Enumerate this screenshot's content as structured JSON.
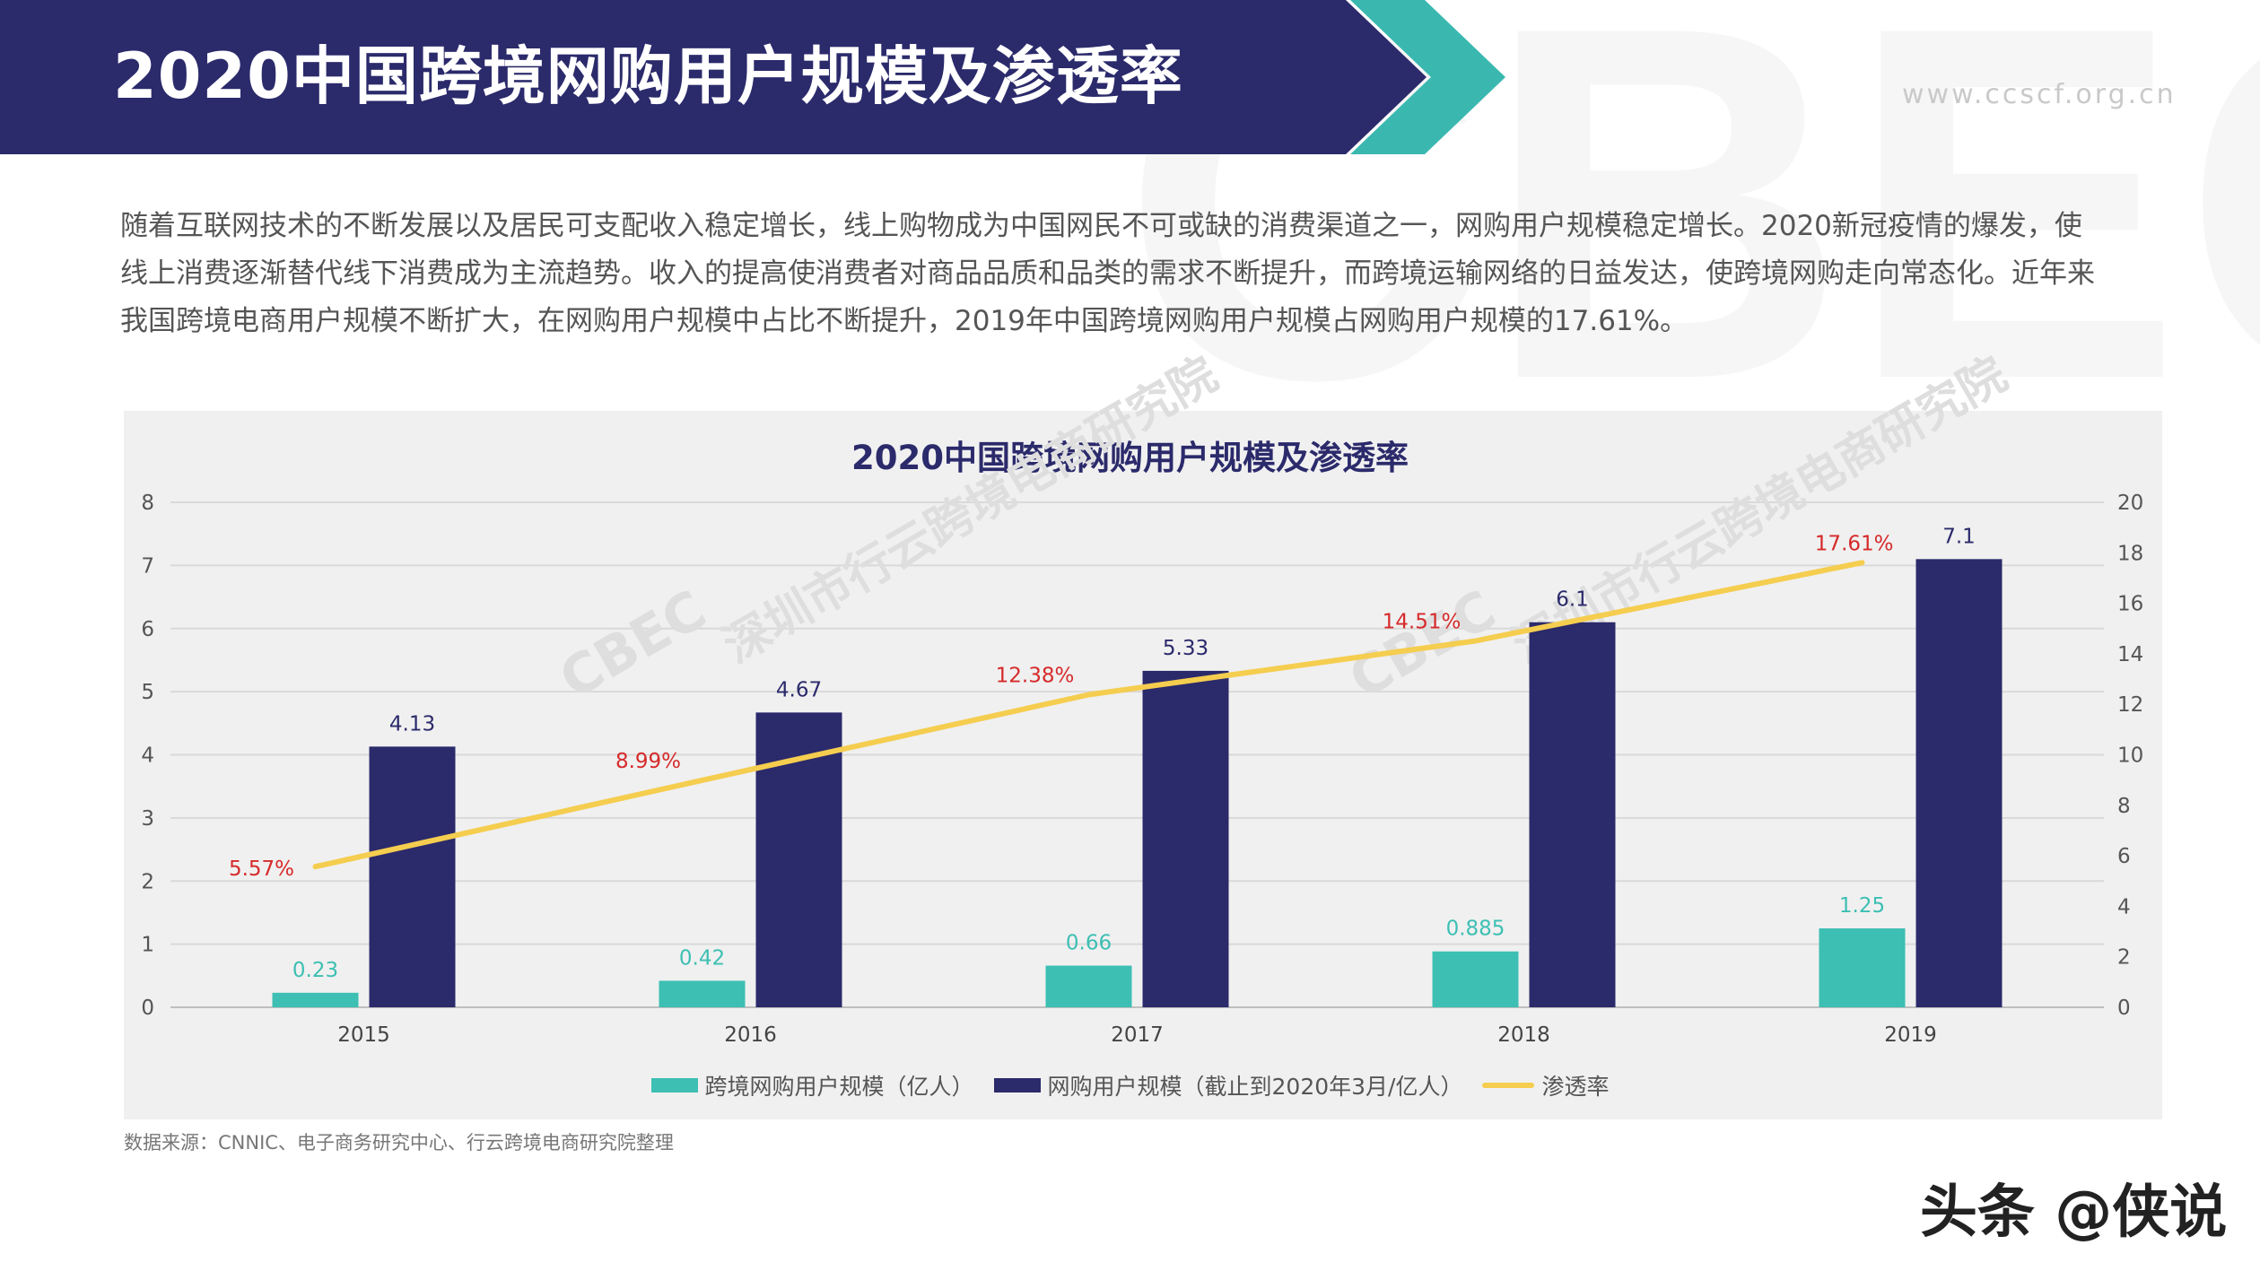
{
  "header": {
    "title": "2020中国跨境网购用户规模及渗透率",
    "website": "www.ccscf.org.cn",
    "brand_bg_letters": "CBEC"
  },
  "intro": {
    "lines": [
      "随着互联网技术的不断发展以及居民可支配收入稳定增长，线上购物成为中国网民不可或缺的消费渠道之一，网购用户规模稳定增长。2020新冠疫情的爆发，使",
      "线上消费逐渐替代线下消费成为主流趋势。收入的提高使消费者对商品品质和品类的需求不断提升，而跨境运输网络的日益发达，使跨境网购走向常态化。近年来",
      "我国跨境电商用户规模不断扩大，在网购用户规模中占比不断提升，2019年中国跨境网购用户规模占网购用户规模的17.61%。"
    ]
  },
  "chart_data": {
    "type": "bar",
    "title": "2020中国跨境网购用户规模及渗透率",
    "categories": [
      "2015",
      "2016",
      "2017",
      "2018",
      "2019"
    ],
    "series": [
      {
        "name": "跨境网购用户规模（亿人）",
        "type": "bar",
        "axis": "left",
        "color": "#3dbfb3",
        "values": [
          0.23,
          0.42,
          0.66,
          0.885,
          1.25
        ],
        "labels": [
          "0.23",
          "0.42",
          "0.66",
          "0.885",
          "1.25"
        ]
      },
      {
        "name": "网购用户规模（截止到2020年3月/亿人）",
        "type": "bar",
        "axis": "left",
        "color": "#2b2a6b",
        "values": [
          4.13,
          4.67,
          5.33,
          6.1,
          7.1
        ],
        "labels": [
          "4.13",
          "4.67",
          "5.33",
          "6.1",
          "7.1"
        ]
      },
      {
        "name": "渗透率",
        "type": "line",
        "axis": "right",
        "color": "#f5cd4f",
        "values": [
          5.57,
          8.99,
          12.38,
          14.51,
          17.61
        ],
        "labels": [
          "5.57%",
          "8.99%",
          "12.38%",
          "14.51%",
          "17.61%"
        ]
      }
    ],
    "y_left": {
      "min": 0,
      "max": 8,
      "ticks": [
        "0",
        "1",
        "2",
        "3",
        "4",
        "5",
        "6",
        "7",
        "8"
      ]
    },
    "y_right": {
      "min": 0,
      "max": 20,
      "ticks": [
        "0",
        "2",
        "4",
        "6",
        "8",
        "10",
        "12",
        "14",
        "16",
        "18",
        "20"
      ]
    },
    "grid": true,
    "legend_position": "bottom",
    "label_colors": {
      "bar1": "#3dbfb3",
      "bar2": "#2b2a6b",
      "line": "#d62a2a"
    },
    "watermark": {
      "text": "深圳市行云跨境电商研究院",
      "logo": "CBEC"
    }
  },
  "source": "数据来源：CNNIC、电子商务研究中心、行云跨境电商研究院整理",
  "footer": "头条 @侠说",
  "colors": {
    "header_bg": "#2b2a6b",
    "accent_teal": "#2fb5ad",
    "panel_bg": "#f0f0f0",
    "text_body": "#555555"
  }
}
